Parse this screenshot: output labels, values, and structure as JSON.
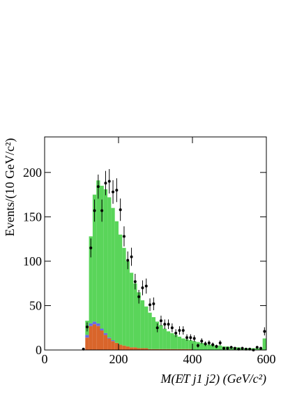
{
  "chart_data": {
    "type": "histogram",
    "x_label": "M(E̸T j1 j2) (GeV/c²)",
    "y_label": "Events/(10 GeV/c²)",
    "xlim": [
      0,
      600
    ],
    "ylim": [
      0,
      240
    ],
    "xticks": [
      0,
      200,
      400,
      600
    ],
    "yticks": [
      0,
      50,
      100,
      150,
      200
    ],
    "bins": [
      100,
      110,
      120,
      130,
      140,
      150,
      160,
      170,
      180,
      190,
      200,
      210,
      220,
      230,
      240,
      250,
      260,
      270,
      280,
      290,
      300,
      310,
      320,
      330,
      340,
      350,
      360,
      370,
      380,
      390,
      400,
      410,
      420,
      430,
      440,
      450,
      460,
      470,
      480,
      490,
      500,
      510,
      520,
      530,
      540,
      550,
      560,
      570,
      580,
      590,
      600
    ],
    "series": [
      {
        "color": "#d9652b",
        "values": [
          0,
          14,
          27,
          29,
          27,
          22,
          17,
          13,
          10,
          8,
          6,
          5,
          4,
          3,
          3,
          2,
          2,
          2,
          1,
          1,
          1,
          1,
          1,
          1,
          1,
          1,
          1,
          1,
          1,
          1,
          0,
          0,
          0,
          0,
          0,
          0,
          0,
          0,
          0,
          0,
          0,
          0,
          0,
          0,
          0,
          0,
          0,
          0,
          0,
          0
        ]
      },
      {
        "color": "#6a6ae6",
        "values": [
          0,
          3,
          3,
          3,
          3,
          2,
          2,
          1,
          1,
          0,
          0,
          0,
          0,
          0,
          0,
          0,
          0,
          0,
          0,
          0,
          0,
          0,
          0,
          0,
          0,
          0,
          0,
          0,
          0,
          0,
          0,
          0,
          0,
          0,
          0,
          0,
          0,
          0,
          0,
          0,
          0,
          0,
          0,
          0,
          0,
          0,
          0,
          0,
          0,
          0
        ]
      },
      {
        "color": "#5ad55a",
        "values": [
          0,
          16,
          98,
          143,
          161,
          161,
          162,
          158,
          149,
          137,
          124,
          110,
          96,
          84,
          72,
          63,
          54,
          47,
          41,
          36,
          31,
          27,
          23,
          20,
          18,
          16,
          14,
          12,
          11,
          10,
          10,
          9,
          8,
          7,
          6,
          6,
          5,
          5,
          4,
          4,
          3,
          3,
          3,
          2,
          2,
          2,
          2,
          2,
          2,
          13
        ]
      }
    ],
    "data_points": {
      "color": "#000000",
      "values": [
        1,
        26,
        115,
        157,
        184,
        157,
        188,
        190,
        178,
        180,
        158,
        128,
        101,
        105,
        77,
        60,
        70,
        72,
        51,
        52,
        25,
        33,
        29,
        29,
        25,
        19,
        22,
        22,
        14,
        14,
        13,
        5,
        10,
        7,
        8,
        6,
        4,
        8,
        2,
        2,
        3,
        2,
        1,
        2,
        1,
        1,
        0,
        3,
        2,
        21
      ],
      "errors": [
        1,
        5.1,
        10.7,
        12.5,
        13.6,
        12.5,
        13.7,
        13.8,
        13.3,
        13.4,
        12.6,
        11.3,
        10.0,
        10.2,
        8.8,
        7.7,
        8.4,
        8.5,
        7.1,
        7.2,
        5,
        5.7,
        5.4,
        5.4,
        5,
        4.4,
        4.7,
        4.7,
        3.7,
        3.7,
        3.6,
        2.2,
        3.2,
        2.6,
        2.8,
        2.4,
        2,
        2.8,
        1.4,
        1.4,
        1.7,
        1.4,
        1,
        1.4,
        1,
        1,
        0,
        1.7,
        1.4,
        4.6
      ]
    }
  }
}
